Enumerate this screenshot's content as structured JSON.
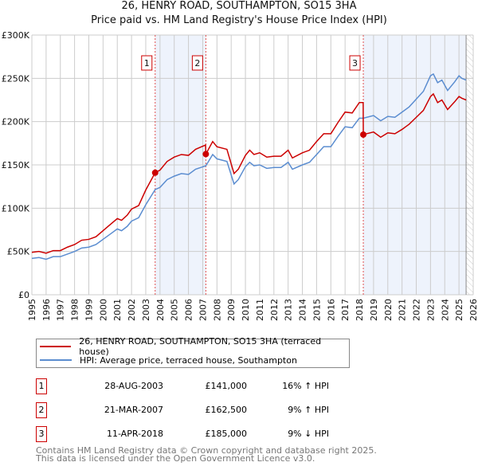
{
  "chart_data": {
    "type": "line",
    "title": "26, HENRY ROAD, SOUTHAMPTON, SO15 3HA",
    "subtitle": "Price paid vs. HM Land Registry's House Price Index (HPI)",
    "xlim": [
      1995,
      2026
    ],
    "ylim": [
      0,
      300000
    ],
    "yticks": [
      {
        "v": 0,
        "l": "£0"
      },
      {
        "v": 50000,
        "l": "£50K"
      },
      {
        "v": 100000,
        "l": "£100K"
      },
      {
        "v": 150000,
        "l": "£150K"
      },
      {
        "v": 200000,
        "l": "£200K"
      },
      {
        "v": 250000,
        "l": "£250K"
      },
      {
        "v": 300000,
        "l": "£300K"
      }
    ],
    "xticks": [
      "1995",
      "1996",
      "1997",
      "1998",
      "1999",
      "2000",
      "2001",
      "2002",
      "2003",
      "2004",
      "2005",
      "2006",
      "2007",
      "2008",
      "2009",
      "2010",
      "2011",
      "2012",
      "2013",
      "2014",
      "2015",
      "2016",
      "2017",
      "2018",
      "2019",
      "2020",
      "2021",
      "2022",
      "2023",
      "2024",
      "2025",
      "2026"
    ],
    "grid": true,
    "series": [
      {
        "name": "26, HENRY ROAD, SOUTHAMPTON, SO15 3HA (terraced house)",
        "color": "#cc0000",
        "points": [
          [
            1995,
            49
          ],
          [
            1995.5,
            50
          ],
          [
            1996,
            48
          ],
          [
            1996.5,
            51
          ],
          [
            1997,
            51
          ],
          [
            1997.5,
            55
          ],
          [
            1998,
            58
          ],
          [
            1998.5,
            63
          ],
          [
            1999,
            64
          ],
          [
            1999.5,
            67
          ],
          [
            2000,
            74
          ],
          [
            2000.5,
            81
          ],
          [
            2001,
            88
          ],
          [
            2001.3,
            86
          ],
          [
            2001.7,
            92
          ],
          [
            2002,
            99
          ],
          [
            2002.5,
            103
          ],
          [
            2003,
            121
          ],
          [
            2003.66,
            141
          ],
          [
            2004,
            144
          ],
          [
            2004.5,
            154
          ],
          [
            2005,
            159
          ],
          [
            2005.5,
            162
          ],
          [
            2006,
            161
          ],
          [
            2006.5,
            168
          ],
          [
            2007.2,
            173
          ],
          [
            2007.22,
            162.5
          ],
          [
            2007.7,
            177
          ],
          [
            2008,
            171
          ],
          [
            2008.7,
            168
          ],
          [
            2009.2,
            140
          ],
          [
            2009.5,
            145
          ],
          [
            2010,
            161
          ],
          [
            2010.3,
            167
          ],
          [
            2010.6,
            162
          ],
          [
            2011,
            164
          ],
          [
            2011.5,
            159
          ],
          [
            2012,
            160
          ],
          [
            2012.5,
            160
          ],
          [
            2013,
            167
          ],
          [
            2013.3,
            158
          ],
          [
            2014,
            164
          ],
          [
            2014.5,
            167
          ],
          [
            2015,
            177
          ],
          [
            2015.5,
            186
          ],
          [
            2016,
            186
          ],
          [
            2016.5,
            199
          ],
          [
            2017,
            211
          ],
          [
            2017.5,
            210
          ],
          [
            2018,
            222
          ],
          [
            2018.27,
            222
          ],
          [
            2018.28,
            185
          ],
          [
            2019,
            188
          ],
          [
            2019.5,
            182
          ],
          [
            2020,
            187
          ],
          [
            2020.5,
            186
          ],
          [
            2021,
            191
          ],
          [
            2021.5,
            197
          ],
          [
            2022,
            205
          ],
          [
            2022.5,
            213
          ],
          [
            2023,
            229
          ],
          [
            2023.2,
            232
          ],
          [
            2023.5,
            222
          ],
          [
            2023.8,
            225
          ],
          [
            2024.2,
            214
          ],
          [
            2024.7,
            223
          ],
          [
            2025,
            229
          ],
          [
            2025.2,
            227
          ],
          [
            2025.5,
            225
          ]
        ]
      },
      {
        "name": "HPI: Average price, terraced house, Southampton",
        "color": "#5b8dd0",
        "points": [
          [
            1995,
            42
          ],
          [
            1995.5,
            43
          ],
          [
            1996,
            41
          ],
          [
            1996.5,
            44
          ],
          [
            1997,
            44
          ],
          [
            1997.5,
            47
          ],
          [
            1998,
            50
          ],
          [
            1998.5,
            54
          ],
          [
            1999,
            55
          ],
          [
            1999.5,
            58
          ],
          [
            2000,
            64
          ],
          [
            2000.5,
            70
          ],
          [
            2001,
            76
          ],
          [
            2001.3,
            74
          ],
          [
            2001.7,
            79
          ],
          [
            2002,
            85
          ],
          [
            2002.5,
            89
          ],
          [
            2003,
            104
          ],
          [
            2003.66,
            121.5
          ],
          [
            2004,
            124
          ],
          [
            2004.5,
            133
          ],
          [
            2005,
            137
          ],
          [
            2005.5,
            140
          ],
          [
            2006,
            139
          ],
          [
            2006.5,
            145
          ],
          [
            2007.22,
            149
          ],
          [
            2007.7,
            162
          ],
          [
            2008,
            157
          ],
          [
            2008.7,
            154
          ],
          [
            2009.2,
            128
          ],
          [
            2009.5,
            133
          ],
          [
            2010,
            148
          ],
          [
            2010.3,
            153
          ],
          [
            2010.6,
            149
          ],
          [
            2011,
            150
          ],
          [
            2011.5,
            146
          ],
          [
            2012,
            147
          ],
          [
            2012.5,
            147
          ],
          [
            2013,
            153
          ],
          [
            2013.3,
            145
          ],
          [
            2014,
            150
          ],
          [
            2014.5,
            153
          ],
          [
            2015,
            162
          ],
          [
            2015.5,
            171
          ],
          [
            2016,
            171
          ],
          [
            2016.5,
            183
          ],
          [
            2017,
            194
          ],
          [
            2017.5,
            193
          ],
          [
            2018,
            204
          ],
          [
            2018.28,
            204
          ],
          [
            2019,
            207
          ],
          [
            2019.5,
            201
          ],
          [
            2020,
            206
          ],
          [
            2020.5,
            205
          ],
          [
            2021,
            211
          ],
          [
            2021.5,
            217
          ],
          [
            2022,
            226
          ],
          [
            2022.5,
            235
          ],
          [
            2023,
            253
          ],
          [
            2023.2,
            255
          ],
          [
            2023.5,
            245
          ],
          [
            2023.8,
            248
          ],
          [
            2024.2,
            236
          ],
          [
            2024.7,
            246
          ],
          [
            2025,
            253
          ],
          [
            2025.2,
            250
          ],
          [
            2025.5,
            248
          ]
        ]
      }
    ],
    "sales": [
      {
        "n": "1",
        "x": 2003.66,
        "v": 141000,
        "date": "28-AUG-2003",
        "price": "£141,000",
        "hpi": "16% ↑ HPI"
      },
      {
        "n": "2",
        "x": 2007.22,
        "v": 162500,
        "date": "21-MAR-2007",
        "price": "£162,500",
        "hpi": "9% ↑ HPI"
      },
      {
        "n": "3",
        "x": 2018.28,
        "v": 185000,
        "date": "11-APR-2018",
        "price": "£185,000",
        "hpi": "9% ↓ HPI"
      }
    ],
    "shaded": [
      [
        2003.66,
        2007.22
      ],
      [
        2018.28,
        2025.5
      ]
    ],
    "forecast_from": 2025.5
  },
  "footer": {
    "line1": "Contains HM Land Registry data © Crown copyright and database right 2025.",
    "line2": "This data is licensed under the Open Government Licence v3.0."
  }
}
